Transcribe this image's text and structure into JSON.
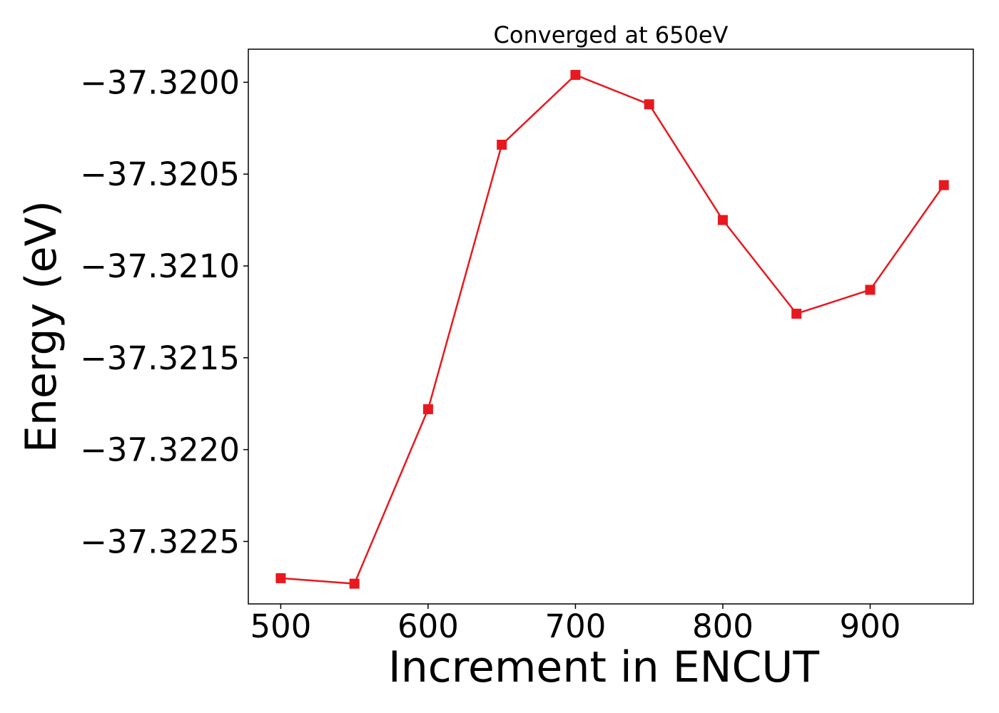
{
  "chart_data": {
    "type": "line",
    "title": "Converged at 650eV",
    "xlabel": "Increment in ENCUT",
    "ylabel": "Energy (eV)",
    "xlim": [
      478,
      970
    ],
    "ylim": [
      -37.32284,
      -37.31982
    ],
    "x_ticks": [
      500,
      600,
      700,
      800,
      900
    ],
    "x_tick_labels": [
      "500",
      "600",
      "700",
      "800",
      "900"
    ],
    "y_ticks": [
      -37.32,
      -37.3205,
      -37.321,
      -37.3215,
      -37.322,
      -37.3225
    ],
    "y_tick_labels": [
      "−37.3200",
      "−37.3205",
      "−37.3210",
      "−37.3215",
      "−37.3220",
      "−37.3225"
    ],
    "grid": false,
    "series": [
      {
        "color": "#e8191e",
        "marker": "square",
        "x": [
          500,
          550,
          600,
          650,
          700,
          750,
          800,
          850,
          900,
          950
        ],
        "y": [
          -37.3227,
          -37.32273,
          -37.32178,
          -37.32034,
          -37.31996,
          -37.32012,
          -37.32075,
          -37.32126,
          -37.32113,
          -37.32056
        ]
      }
    ]
  }
}
